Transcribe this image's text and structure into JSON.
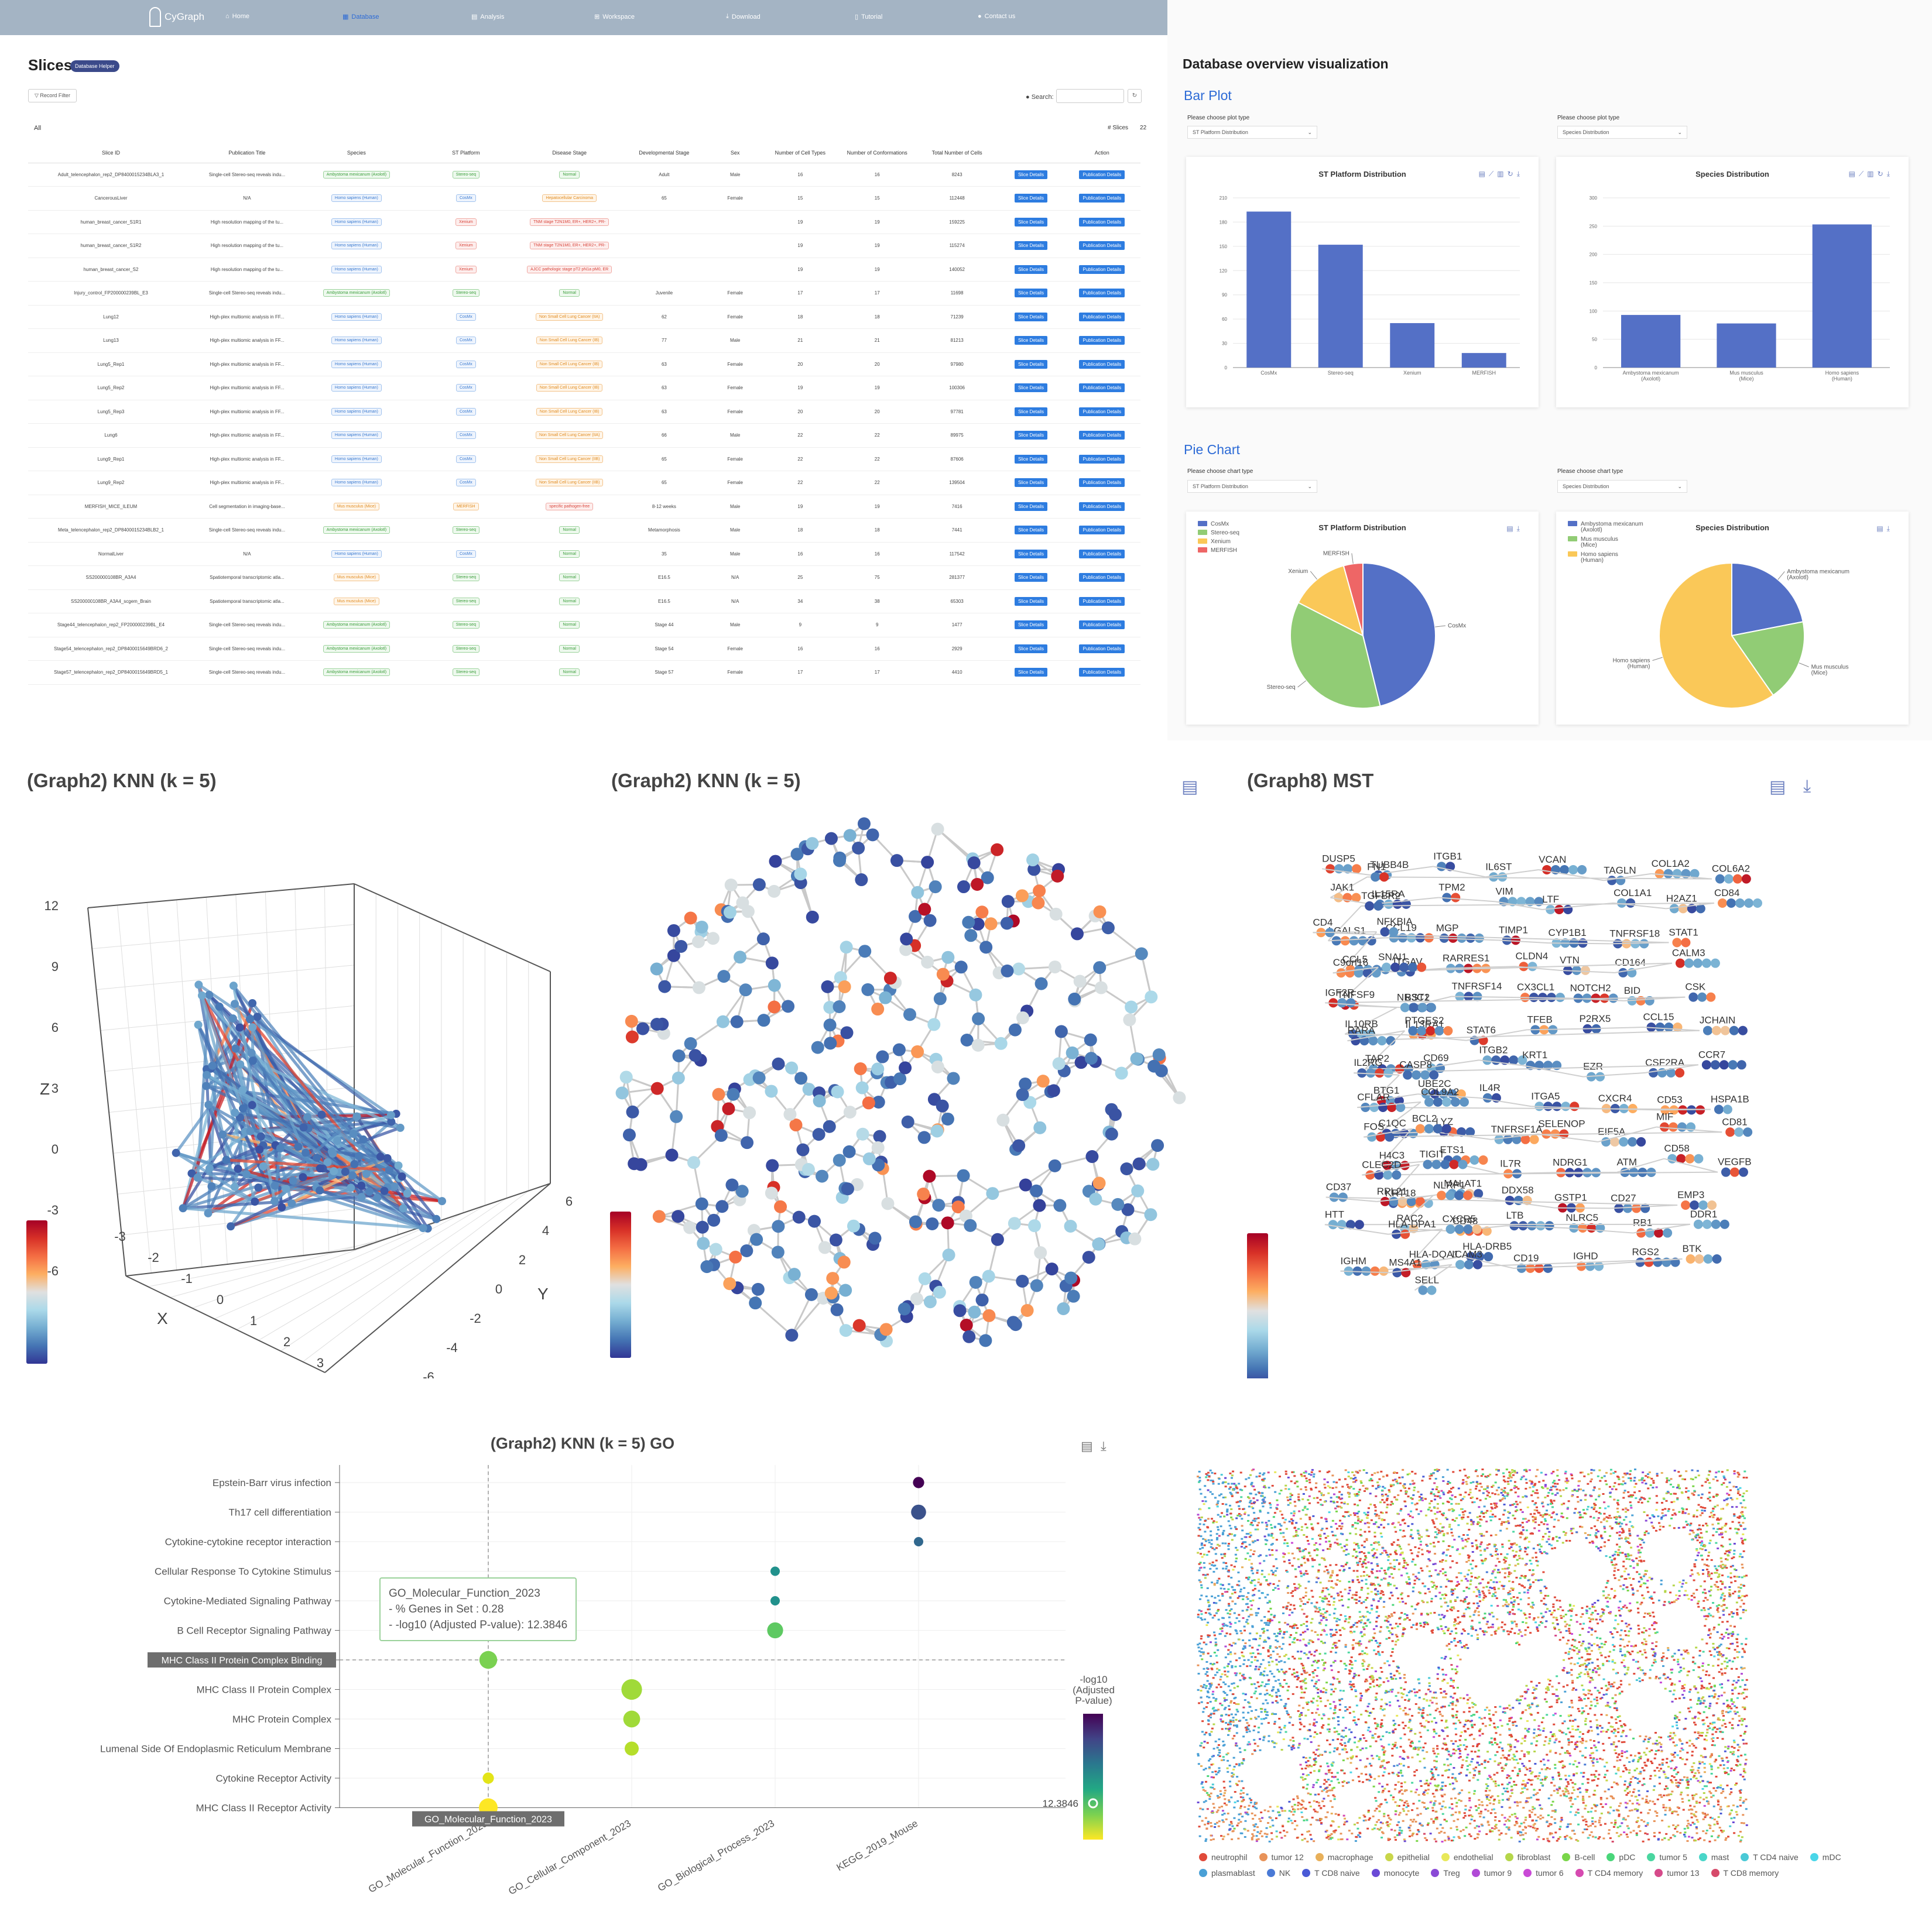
{
  "nav": {
    "brand": "CyGraph",
    "items": [
      {
        "icon": "home-icon",
        "label": "Home",
        "x": 385,
        "active": false
      },
      {
        "icon": "database-icon",
        "label": "Database",
        "x": 585,
        "active": true
      },
      {
        "icon": "analysis-icon",
        "label": "Analysis",
        "x": 805,
        "active": false
      },
      {
        "icon": "workspace-icon",
        "label": "Workspace",
        "x": 1015,
        "active": false
      },
      {
        "icon": "download-icon",
        "label": "Download",
        "x": 1240,
        "active": false
      },
      {
        "icon": "tutorial-icon",
        "label": "Tutorial",
        "x": 1460,
        "active": false
      },
      {
        "icon": "contact-icon",
        "label": "Contact us",
        "x": 1670,
        "active": false
      }
    ]
  },
  "slices": {
    "title": "Slices",
    "helper": "Database Helper",
    "record_filter": "Record Filter",
    "search_label": "Search:",
    "all_label": "All",
    "count_label": "# Slices",
    "count_value": "22",
    "columns": [
      "Slice ID",
      "Publication Title",
      "Species",
      "ST Platform",
      "Disease Stage",
      "Developmental Stage",
      "Sex",
      "Number of Cell Types",
      "Number of Conformations",
      "Total Number of Cells",
      "",
      "Action"
    ],
    "slice_btn": "Slice Details",
    "pub_btn": "Publication Details",
    "rows": [
      [
        "Adult_telencephalon_rep2_DP8400015234BLA3_1",
        "Single-cell Stereo-seq reveals indu...",
        "Ambystoma mexicanum (Axolotl)",
        "Stereo-seq",
        "Normal",
        "Adult",
        "Male",
        "16",
        "16",
        "8243"
      ],
      [
        "CancerousLiver",
        "N/A",
        "Homo sapiens (Human)",
        "CosMx",
        "Hepatocellular Carcinoma",
        "65",
        "Female",
        "15",
        "15",
        "112448"
      ],
      [
        "human_breast_cancer_S1R1",
        "High resolution mapping of the tu...",
        "Homo sapiens (Human)",
        "Xenium",
        "TNM stage T2N1M0, ER+, HER2+, PR-",
        "",
        "",
        "19",
        "19",
        "159225"
      ],
      [
        "human_breast_cancer_S1R2",
        "High resolution mapping of the tu...",
        "Homo sapiens (Human)",
        "Xenium",
        "TNM stage T2N1M0, ER+, HER2+, PR-",
        "",
        "",
        "19",
        "19",
        "115274"
      ],
      [
        "human_breast_cancer_S2",
        "High resolution mapping of the tu...",
        "Homo sapiens (Human)",
        "Xenium",
        "AJCC pathologic stage pT2 pN1a pM0, ER",
        "",
        "",
        "19",
        "19",
        "140052"
      ],
      [
        "Injury_control_FP200000239BL_E3",
        "Single-cell Stereo-seq reveals indu...",
        "Ambystoma mexicanum (Axolotl)",
        "Stereo-seq",
        "Normal",
        "Juvenile",
        "Female",
        "17",
        "17",
        "11698"
      ],
      [
        "Lung12",
        "High-plex multiomic analysis in FF...",
        "Homo sapiens (Human)",
        "CosMx",
        "Non Small Cell Lung Cancer (IIA)",
        "62",
        "Female",
        "18",
        "18",
        "71239"
      ],
      [
        "Lung13",
        "High-plex multiomic analysis in FF...",
        "Homo sapiens (Human)",
        "CosMx",
        "Non Small Cell Lung Cancer (IB)",
        "77",
        "Male",
        "21",
        "21",
        "81213"
      ],
      [
        "Lung5_Rep1",
        "High-plex multiomic analysis in FF...",
        "Homo sapiens (Human)",
        "CosMx",
        "Non Small Cell Lung Cancer (IB)",
        "63",
        "Female",
        "20",
        "20",
        "97980"
      ],
      [
        "Lung5_Rep2",
        "High-plex multiomic analysis in FF...",
        "Homo sapiens (Human)",
        "CosMx",
        "Non Small Cell Lung Cancer (IB)",
        "63",
        "Female",
        "19",
        "19",
        "100306"
      ],
      [
        "Lung5_Rep3",
        "High-plex multiomic analysis in FF...",
        "Homo sapiens (Human)",
        "CosMx",
        "Non Small Cell Lung Cancer (IB)",
        "63",
        "Female",
        "20",
        "20",
        "97781"
      ],
      [
        "Lung6",
        "High-plex multiomic analysis in FF...",
        "Homo sapiens (Human)",
        "CosMx",
        "Non Small Cell Lung Cancer (IIA)",
        "66",
        "Male",
        "22",
        "22",
        "89975"
      ],
      [
        "Lung9_Rep1",
        "High-plex multiomic analysis in FF...",
        "Homo sapiens (Human)",
        "CosMx",
        "Non Small Cell Lung Cancer (IIB)",
        "65",
        "Female",
        "22",
        "22",
        "87606"
      ],
      [
        "Lung9_Rep2",
        "High-plex multiomic analysis in FF...",
        "Homo sapiens (Human)",
        "CosMx",
        "Non Small Cell Lung Cancer (IIB)",
        "65",
        "Female",
        "22",
        "22",
        "139504"
      ],
      [
        "MERFISH_MICE_ILEUM",
        "Cell segmentation in imaging-base...",
        "Mus musculus (Mice)",
        "MERFISH",
        "specific pathogen-free",
        "8-12 weeks",
        "Male",
        "19",
        "19",
        "7416"
      ],
      [
        "Meta_telencephalon_rep2_DP8400015234BLB2_1",
        "Single-cell Stereo-seq reveals indu...",
        "Ambystoma mexicanum (Axolotl)",
        "Stereo-seq",
        "Normal",
        "Metamorphosis",
        "Male",
        "18",
        "18",
        "7441"
      ],
      [
        "NormalLiver",
        "N/A",
        "Homo sapiens (Human)",
        "CosMx",
        "Normal",
        "35",
        "Male",
        "16",
        "16",
        "117542"
      ],
      [
        "SS200000108BR_A3A4",
        "Spatiotemporal transcriptomic atla...",
        "Mus musculus (Mice)",
        "Stereo-seq",
        "Normal",
        "E16.5",
        "N/A",
        "25",
        "75",
        "281377"
      ],
      [
        "SS200000108BR_A3A4_scgem_Brain",
        "Spatiotemporal transcriptomic atla...",
        "Mus musculus (Mice)",
        "Stereo-seq",
        "Normal",
        "E16.5",
        "N/A",
        "34",
        "38",
        "65303"
      ],
      [
        "Stage44_telencephalon_rep2_FP200000239BL_E4",
        "Single-cell Stereo-seq reveals indu...",
        "Ambystoma mexicanum (Axolotl)",
        "Stereo-seq",
        "Normal",
        "Stage 44",
        "Male",
        "9",
        "9",
        "1477"
      ],
      [
        "Stage54_telencephalon_rep2_DP8400015649BRD6_2",
        "Single-cell Stereo-seq reveals indu...",
        "Ambystoma mexicanum (Axolotl)",
        "Stereo-seq",
        "Normal",
        "Stage 54",
        "Female",
        "16",
        "16",
        "2929"
      ],
      [
        "Stage57_telencephalon_rep2_DP8400015649BRD5_1",
        "Single-cell Stereo-seq reveals indu...",
        "Ambystoma mexicanum (Axolotl)",
        "Stereo-seq",
        "Normal",
        "Stage 57",
        "Female",
        "17",
        "17",
        "4410"
      ]
    ]
  },
  "overview": {
    "title": "Database overview visualization",
    "bar_section": "Bar Plot",
    "pie_section": "Pie Chart",
    "choose_plot": "Please choose plot type",
    "choose_chart": "Please choose chart type",
    "sel_platform": "ST Platform Distribution",
    "sel_species": "Species Distribution"
  },
  "chart_data": [
    {
      "type": "bar",
      "title": "ST Platform Distribution",
      "categories": [
        "CosMx",
        "Stereo-seq",
        "Xenium",
        "MERFISH"
      ],
      "values": [
        193,
        152,
        55,
        18
      ],
      "yticks": [
        0,
        30,
        60,
        90,
        120,
        150,
        180,
        210
      ],
      "ylim": [
        0,
        210
      ]
    },
    {
      "type": "bar",
      "title": "Species Distribution",
      "categories": [
        "Ambystoma mexicanum\n(Axolotl)",
        "Mus musculus\n(Mice)",
        "Homo sapiens\n(Human)"
      ],
      "values": [
        93,
        78,
        253
      ],
      "yticks": [
        0,
        50,
        100,
        150,
        200,
        250,
        300
      ],
      "ylim": [
        0,
        300
      ]
    },
    {
      "type": "pie",
      "title": "ST Platform Distribution",
      "labels": [
        "CosMx",
        "Stereo-seq",
        "Xenium",
        "MERFISH"
      ],
      "values": [
        193,
        152,
        55,
        18
      ],
      "colors": [
        "#5470c6",
        "#91cc75",
        "#fac858",
        "#ee6666"
      ]
    },
    {
      "type": "pie",
      "title": "Species Distribution",
      "labels": [
        "Ambystoma mexicanum\n(Axolotl)",
        "Mus musculus\n(Mice)",
        "Homo sapiens\n(Human)"
      ],
      "values": [
        93,
        78,
        253
      ],
      "colors": [
        "#5470c6",
        "#91cc75",
        "#fac858"
      ]
    },
    {
      "type": "scatter",
      "title": "(Graph2) KNN (k = 5) GO",
      "categories": [
        "GO_Molecular_Function_2023",
        "GO_Cellular_Component_2023",
        "GO_Biological_Process_2023",
        "KEGG_2019_Mouse"
      ],
      "terms": [
        "Epstein-Barr virus infection",
        "Th17 cell differentiation",
        "Cytokine-cytokine receptor interaction",
        "Cellular Response To Cytokine Stimulus",
        "Cytokine-Mediated Signaling Pathway",
        "B Cell Receptor Signaling Pathway",
        "MHC Class II Protein Complex Binding",
        "MHC Class II Protein Complex",
        "MHC Protein Complex",
        "Lumenal Side Of Endoplasmic Reticulum Membrane",
        "Cytokine Receptor Activity",
        "MHC Class II Receptor Activity"
      ],
      "points": [
        {
          "term": "Epstein-Barr virus infection",
          "category": "KEGG_2019_Mouse",
          "size": 0.14,
          "color": "#440154"
        },
        {
          "term": "Th17 cell differentiation",
          "category": "KEGG_2019_Mouse",
          "size": 0.22,
          "color": "#3b528b"
        },
        {
          "term": "Cytokine-cytokine receptor interaction",
          "category": "KEGG_2019_Mouse",
          "size": 0.1,
          "color": "#31688e"
        },
        {
          "term": "Cellular Response To Cytokine Stimulus",
          "category": "GO_Biological_Process_2023",
          "size": 0.1,
          "color": "#21918c"
        },
        {
          "term": "Cytokine-Mediated Signaling Pathway",
          "category": "GO_Biological_Process_2023",
          "size": 0.1,
          "color": "#21918c"
        },
        {
          "term": "B Cell Receptor Signaling Pathway",
          "category": "GO_Biological_Process_2023",
          "size": 0.24,
          "color": "#5ec962"
        },
        {
          "term": "MHC Class II Protein Complex Binding",
          "category": "GO_Molecular_Function_2023",
          "size": 0.28,
          "color": "#7ad151"
        },
        {
          "term": "MHC Class II Protein Complex",
          "category": "GO_Cellular_Component_2023",
          "size": 0.34,
          "color": "#a0da39"
        },
        {
          "term": "MHC Protein Complex",
          "category": "GO_Cellular_Component_2023",
          "size": 0.26,
          "color": "#a0da39"
        },
        {
          "term": "Lumenal Side Of Endoplasmic Reticulum Membrane",
          "category": "GO_Cellular_Component_2023",
          "size": 0.2,
          "color": "#b5de2b"
        },
        {
          "term": "Cytokine Receptor Activity",
          "category": "GO_Molecular_Function_2023",
          "size": 0.14,
          "color": "#e3e418"
        },
        {
          "term": "MHC Class II Receptor Activity",
          "category": "GO_Molecular_Function_2023",
          "size": 0.3,
          "color": "#fde725"
        }
      ],
      "colorbar_title": "-log10\n(Adjusted\nP-value)",
      "colorbar_value": "12.3846",
      "tooltip": {
        "title": "GO_Molecular_Function_2023",
        "line1": "- % Genes in Set : 0.28",
        "line2": "- -log10 (Adjusted P-value): 12.3846"
      }
    }
  ],
  "graphs": {
    "g3d_title": "(Graph2) KNN (k = 5)",
    "knn_title": "(Graph2) KNN (k = 5)",
    "mst_title": "(Graph8) MST",
    "go_title": "(Graph2) KNN (k = 5) GO",
    "z_label": "Z",
    "x_label": "X",
    "y_label": "Y",
    "z_ticks": [
      "12",
      "9",
      "6",
      "3",
      "0",
      "-3",
      "-6"
    ],
    "x_ticks": [
      "-3",
      "-2",
      "-1",
      "0",
      "1",
      "2",
      "3"
    ],
    "y_ticks": [
      "6",
      "4",
      "2",
      "0",
      "-2",
      "-4",
      "-6"
    ],
    "mst_genes": [
      "DUSP5",
      "TUBB4B",
      "ITGB1",
      "IL6ST",
      "VCAN",
      "TAGLN",
      "COL1A2",
      "COL6A2",
      "FN1",
      "JAK1",
      "IL15RA",
      "TPM2",
      "VIM",
      "LTF",
      "COL1A1",
      "H2AZ1",
      "CD84",
      "TGFBR2",
      "LGALS1",
      "CCL19",
      "MGP",
      "TIMP1",
      "CYP1B1",
      "TNFRSF18",
      "STAT1",
      "CD4",
      "NFKBIA",
      "CCL5",
      "ITGAV",
      "RARRES1",
      "CLDN4",
      "VTN",
      "CD164",
      "CALM3",
      "C9orf16",
      "SNAI1",
      "TNFSF9",
      "BST2",
      "TNFRSF14",
      "CX3CL1",
      "NOTCH2",
      "BID",
      "CSK",
      "IGF2R",
      "NR3C1",
      "IL10RB",
      "IL13RA1",
      "STAT6",
      "TFEB",
      "P2RX5",
      "CCL15",
      "JCHAIN",
      "RARA",
      "PTGES2",
      "TAP2",
      "CD69",
      "ITGB2",
      "KRT1",
      "EZR",
      "CSF2RA",
      "CCR7",
      "IL2RG",
      "CASP8",
      "BTG1",
      "UBE2C",
      "IL4R",
      "ITGA5",
      "CXCR4",
      "CD53",
      "HSPA1B",
      "CFLAR",
      "COL9A2",
      "C1QC",
      "LYZ",
      "TNFRSF1A",
      "SELENOP",
      "EIF5A",
      "MIF",
      "CD81",
      "FOS",
      "BCL2",
      "H4C3",
      "ETS1",
      "IL7R",
      "NDRG1",
      "ATM",
      "CD58",
      "VEGFB",
      "CLEC2D",
      "TIGIT",
      "KRT18",
      "MALAT1",
      "DDX58",
      "GSTP1",
      "CD27",
      "EMP3",
      "CD37",
      "RPL21",
      "NLRP1",
      "RAC2",
      "CD48",
      "LTB",
      "NLRC5",
      "RB1",
      "DDR1",
      "HTT",
      "HLA-DPA1",
      "CXCR5",
      "HLA-DQA1",
      "HLA-DRB5",
      "CD19",
      "IGHD",
      "RGS2",
      "BTK",
      "IGHM",
      "MS4A1",
      "ICAM3",
      "SELL"
    ],
    "celltypes": [
      {
        "name": "neutrophil",
        "color": "#e04a3a"
      },
      {
        "name": "tumor 12",
        "color": "#e8935a"
      },
      {
        "name": "macrophage",
        "color": "#e8b05a"
      },
      {
        "name": "epithelial",
        "color": "#c9d64a"
      },
      {
        "name": "endothelial",
        "color": "#e8e85a"
      },
      {
        "name": "fibroblast",
        "color": "#b5d64a"
      },
      {
        "name": "B-cell",
        "color": "#7ad64a"
      },
      {
        "name": "pDC",
        "color": "#4ad67a"
      },
      {
        "name": "tumor 5",
        "color": "#4ad6a0"
      },
      {
        "name": "mast",
        "color": "#4ad6c9"
      },
      {
        "name": "T CD4 naive",
        "color": "#4ac9d6"
      },
      {
        "name": "mDC",
        "color": "#4ad6e8"
      },
      {
        "name": "plasmablast",
        "color": "#4aa0d6"
      },
      {
        "name": "NK",
        "color": "#4a7ad6"
      },
      {
        "name": "T CD8 naive",
        "color": "#4a5ad6"
      },
      {
        "name": "monocyte",
        "color": "#6a4ad6"
      },
      {
        "name": "Treg",
        "color": "#8a4ad6"
      },
      {
        "name": "tumor 9",
        "color": "#b04ad6"
      },
      {
        "name": "tumor 6",
        "color": "#c94ad6"
      },
      {
        "name": "T CD4 memory",
        "color": "#d64ab0"
      },
      {
        "name": "tumor 13",
        "color": "#d64a8a"
      },
      {
        "name": "T CD8 memory",
        "color": "#d64a6a"
      }
    ]
  }
}
